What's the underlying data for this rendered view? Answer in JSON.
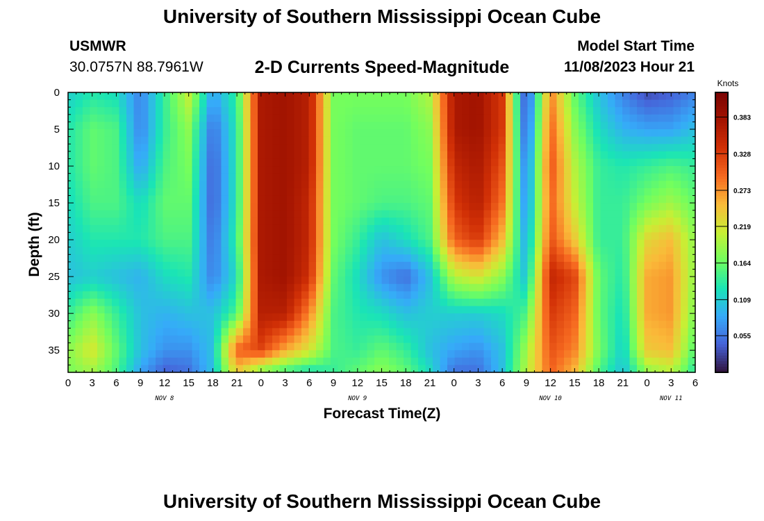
{
  "header": {
    "title": "University of Southern Mississippi Ocean Cube",
    "station_id": "USMWR",
    "coordinates": "30.0757N  88.7961W",
    "subtitle": "2-D Currents Speed-Magnitude",
    "start_label": "Model Start Time",
    "start_value": "11/08/2023 Hour 21"
  },
  "footer": {
    "title": "University of Southern Mississippi Ocean Cube"
  },
  "chart_data": {
    "type": "heatmap",
    "title": "2-D Currents Speed-Magnitude",
    "xlabel": "Forecast Time(Z)",
    "ylabel": "Depth (ft)",
    "x_tick_labels": [
      "0",
      "3",
      "6",
      "9",
      "12",
      "15",
      "18",
      "21",
      "0",
      "3",
      "6",
      "9",
      "12",
      "15",
      "18",
      "21",
      "0",
      "3",
      "6",
      "9",
      "12",
      "15",
      "18",
      "21",
      "0",
      "3",
      "6"
    ],
    "day_labels": [
      {
        "label": "NOV 8",
        "hour": 12
      },
      {
        "label": "NOV 9",
        "hour": 36
      },
      {
        "label": "NOV 10",
        "hour": 60
      },
      {
        "label": "NOV 11",
        "hour": 75
      }
    ],
    "xlim_hours": [
      0,
      78
    ],
    "ylim_ft": [
      0,
      38
    ],
    "y_ticks": [
      0,
      5,
      10,
      15,
      20,
      25,
      30,
      35
    ],
    "colorbar": {
      "unit": "Knots",
      "ticks": [
        "0.383",
        "0.328",
        "0.273",
        "0.219",
        "0.164",
        "0.109",
        "0.055"
      ],
      "range": [
        0.0,
        0.42
      ]
    },
    "depths_ft": [
      0,
      5,
      10,
      15,
      20,
      25,
      30,
      35,
      38
    ],
    "hours": [
      0,
      3,
      6,
      9,
      12,
      15,
      18,
      21,
      24,
      27,
      30,
      33,
      36,
      39,
      42,
      45,
      48,
      51,
      54,
      57,
      60,
      63,
      66,
      69,
      72,
      75,
      78
    ],
    "speed_knots": [
      [
        0.11,
        0.13,
        0.12,
        0.06,
        0.14,
        0.21,
        0.08,
        0.14,
        0.37,
        0.38,
        0.36,
        0.17,
        0.17,
        0.17,
        0.17,
        0.2,
        0.37,
        0.38,
        0.33,
        0.02,
        0.28,
        0.16,
        0.1,
        0.06,
        0.03,
        0.04,
        0.06
      ],
      [
        0.13,
        0.16,
        0.15,
        0.06,
        0.14,
        0.18,
        0.05,
        0.13,
        0.37,
        0.38,
        0.36,
        0.17,
        0.16,
        0.16,
        0.16,
        0.18,
        0.37,
        0.38,
        0.33,
        0.03,
        0.3,
        0.18,
        0.12,
        0.09,
        0.08,
        0.08,
        0.1
      ],
      [
        0.13,
        0.16,
        0.15,
        0.08,
        0.15,
        0.17,
        0.04,
        0.13,
        0.37,
        0.38,
        0.36,
        0.17,
        0.16,
        0.16,
        0.16,
        0.17,
        0.35,
        0.37,
        0.31,
        0.05,
        0.31,
        0.2,
        0.14,
        0.13,
        0.14,
        0.15,
        0.14
      ],
      [
        0.12,
        0.15,
        0.15,
        0.12,
        0.16,
        0.16,
        0.04,
        0.13,
        0.37,
        0.38,
        0.35,
        0.17,
        0.16,
        0.15,
        0.15,
        0.16,
        0.33,
        0.36,
        0.29,
        0.06,
        0.3,
        0.21,
        0.14,
        0.14,
        0.17,
        0.19,
        0.16
      ],
      [
        0.11,
        0.13,
        0.13,
        0.13,
        0.15,
        0.15,
        0.05,
        0.14,
        0.37,
        0.38,
        0.35,
        0.17,
        0.14,
        0.1,
        0.12,
        0.15,
        0.3,
        0.33,
        0.25,
        0.08,
        0.31,
        0.24,
        0.14,
        0.14,
        0.23,
        0.25,
        0.18
      ],
      [
        0.1,
        0.11,
        0.1,
        0.09,
        0.12,
        0.13,
        0.06,
        0.12,
        0.37,
        0.38,
        0.34,
        0.16,
        0.12,
        0.07,
        0.05,
        0.1,
        0.2,
        0.22,
        0.18,
        0.1,
        0.35,
        0.32,
        0.16,
        0.13,
        0.26,
        0.27,
        0.18
      ],
      [
        0.14,
        0.18,
        0.14,
        0.1,
        0.09,
        0.1,
        0.1,
        0.15,
        0.36,
        0.36,
        0.28,
        0.15,
        0.13,
        0.12,
        0.1,
        0.11,
        0.11,
        0.11,
        0.12,
        0.15,
        0.33,
        0.3,
        0.16,
        0.12,
        0.26,
        0.27,
        0.17
      ],
      [
        0.18,
        0.22,
        0.16,
        0.1,
        0.07,
        0.07,
        0.1,
        0.3,
        0.32,
        0.26,
        0.22,
        0.15,
        0.14,
        0.16,
        0.14,
        0.1,
        0.08,
        0.07,
        0.1,
        0.19,
        0.31,
        0.28,
        0.17,
        0.11,
        0.24,
        0.25,
        0.15
      ],
      [
        0.17,
        0.19,
        0.15,
        0.08,
        0.04,
        0.05,
        0.1,
        0.24,
        0.17,
        0.14,
        0.12,
        0.14,
        0.16,
        0.18,
        0.16,
        0.12,
        0.05,
        0.05,
        0.1,
        0.2,
        0.3,
        0.25,
        0.15,
        0.1,
        0.18,
        0.2,
        0.13
      ]
    ]
  }
}
